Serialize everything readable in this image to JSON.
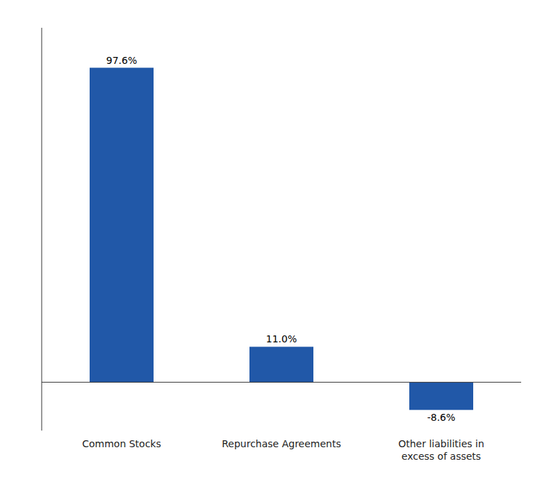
{
  "chart_data": {
    "type": "bar",
    "categories": [
      "Common Stocks",
      "Repurchase Agreements",
      "Other liabilities in\nexcess of assets"
    ],
    "values": [
      97.6,
      11.0,
      -8.6
    ],
    "value_labels": [
      "97.6%",
      "11.0%",
      "-8.6%"
    ],
    "data_labels": true,
    "color": "#2158A8",
    "ylim": [
      -15,
      110
    ],
    "grid": false,
    "tick_labels": "x"
  }
}
